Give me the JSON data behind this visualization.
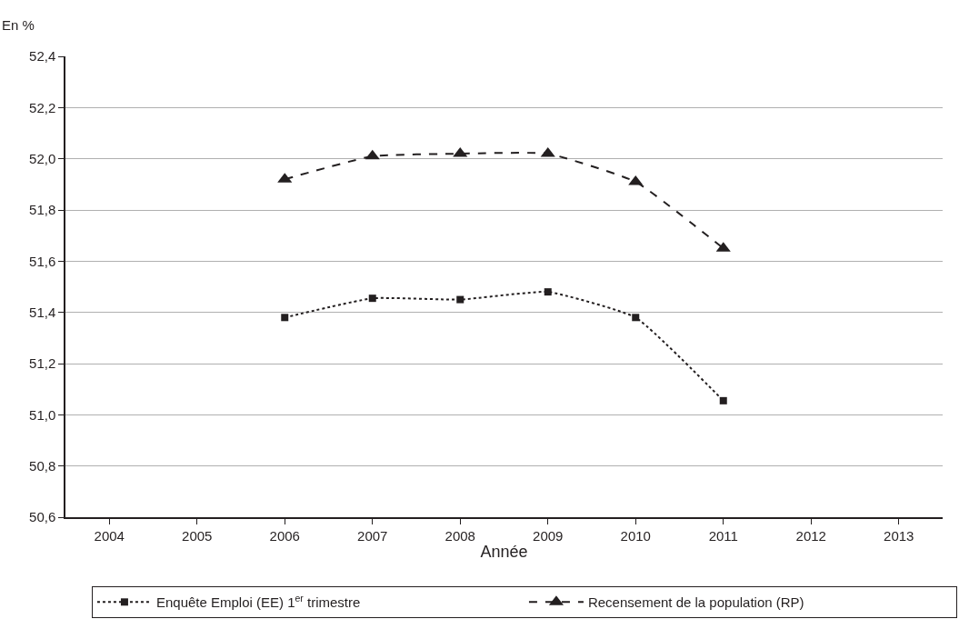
{
  "chart_data": {
    "type": "line",
    "ylabel": "En %",
    "xlabel": "Année",
    "x": [
      2006,
      2007,
      2008,
      2009,
      2010,
      2011
    ],
    "xlim": [
      2003.5,
      2013.5
    ],
    "xticks": [
      {
        "value": 2004,
        "label": "2004"
      },
      {
        "value": 2005,
        "label": "2005"
      },
      {
        "value": 2006,
        "label": "2006"
      },
      {
        "value": 2007,
        "label": "2007"
      },
      {
        "value": 2008,
        "label": "2008"
      },
      {
        "value": 2009,
        "label": "2009"
      },
      {
        "value": 2010,
        "label": "2010"
      },
      {
        "value": 2011,
        "label": "2011"
      },
      {
        "value": 2012,
        "label": "2012"
      },
      {
        "value": 2013,
        "label": "2013"
      }
    ],
    "ylim": [
      50.6,
      52.4
    ],
    "yticks": [
      {
        "value": 50.6,
        "label": "50,6"
      },
      {
        "value": 50.8,
        "label": "50,8"
      },
      {
        "value": 51.0,
        "label": "51,0"
      },
      {
        "value": 51.2,
        "label": "51,2"
      },
      {
        "value": 51.4,
        "label": "51,4"
      },
      {
        "value": 51.6,
        "label": "51,6"
      },
      {
        "value": 51.8,
        "label": "51,8"
      },
      {
        "value": 52.0,
        "label": "52,0"
      },
      {
        "value": 52.2,
        "label": "52,2"
      },
      {
        "value": 52.4,
        "label": "52,4"
      }
    ],
    "grid": "y",
    "legend": "bottom",
    "series": [
      {
        "name": "Enquête Emploi (EE) 1$^{er}$ trimestre",
        "color": "#231f20",
        "marker": "square",
        "line_style": "dotted",
        "values": [
          51.38,
          51.455,
          51.45,
          51.48,
          51.38,
          51.055
        ]
      },
      {
        "name": "Recensement de la population (RP)",
        "color": "#231f20",
        "marker": "triangle",
        "line_style": "dashed",
        "values": [
          51.92,
          52.01,
          52.02,
          52.02,
          51.91,
          51.65
        ]
      }
    ]
  }
}
